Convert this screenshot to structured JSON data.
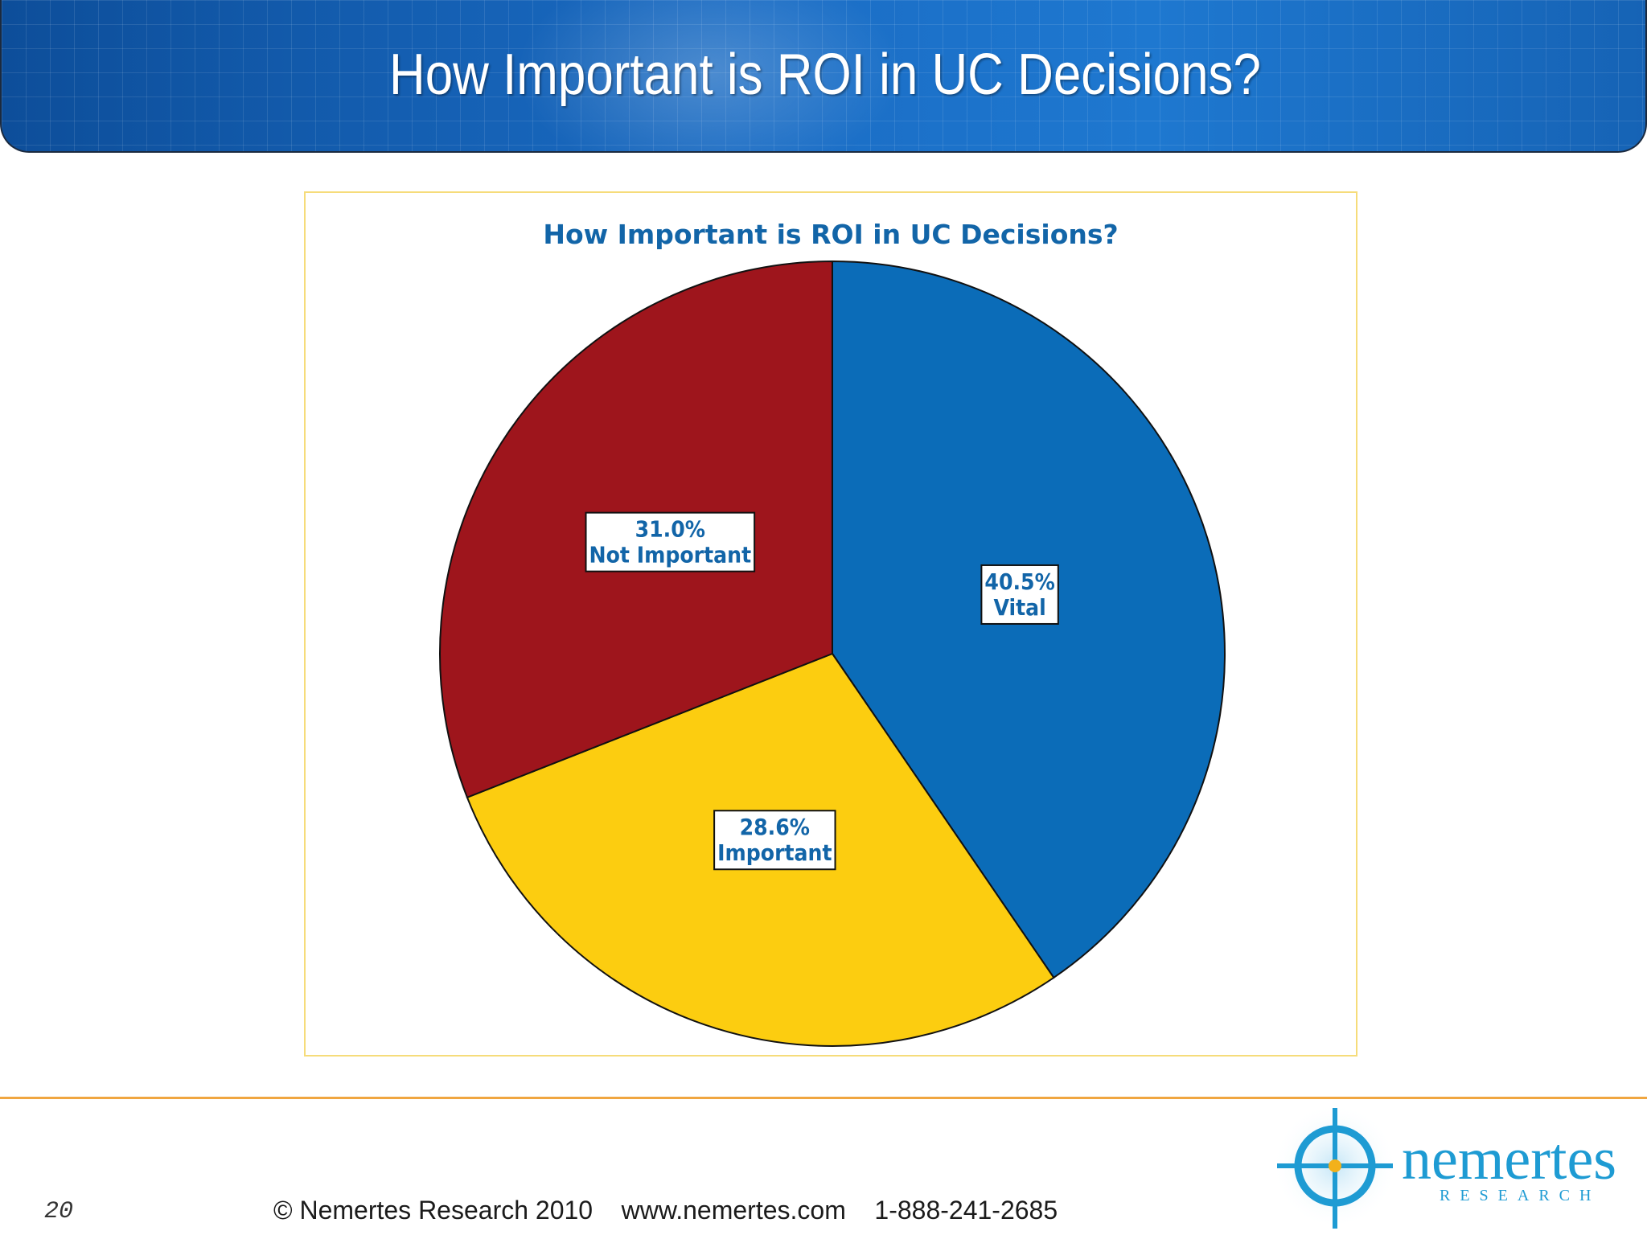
{
  "slide": {
    "title": "How Important is ROI in UC Decisions?",
    "page_number": "20",
    "footer": {
      "copyright": "© Nemertes Research 2010",
      "website": "www.nemertes.com",
      "phone": "1-888-241-2685"
    },
    "logo": {
      "name": "nemertes",
      "tagline": "RESEARCH"
    }
  },
  "colors": {
    "header_blue": "#1a6cc4",
    "title_blue": "#1265a8",
    "vital": "#0b6cb8",
    "important": "#fccd10",
    "not_important": "#9e151c",
    "rule_orange": "#f0a640"
  },
  "chart_data": {
    "type": "pie",
    "title": "How Important is ROI in UC Decisions?",
    "slices": [
      {
        "label": "Vital",
        "value": 40.5,
        "value_label": "40.5%",
        "color": "#0b6cb8"
      },
      {
        "label": "Important",
        "value": 28.6,
        "value_label": "28.6%",
        "color": "#fccd10"
      },
      {
        "label": "Not Important",
        "value": 31.0,
        "value_label": "31.0%",
        "color": "#9e151c"
      }
    ],
    "start": "12 o'clock",
    "direction": "clockwise",
    "legend": "none"
  }
}
